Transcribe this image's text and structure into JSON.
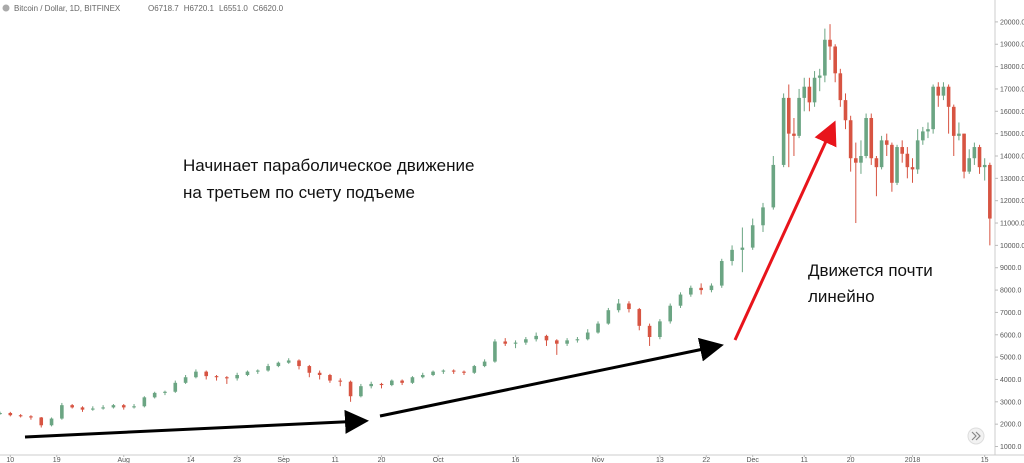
{
  "header": {
    "title": "Bitcoin / Dollar, 1D, BITFINEX",
    "ohlc": [
      "O6718.7",
      "H6720.1",
      "L6551.0",
      "C6620.0"
    ]
  },
  "chart_data": {
    "type": "candlestick",
    "up_color": "#6ba583",
    "down_color": "#d75442",
    "xlim": [
      -2,
      191
    ],
    "ylim": [
      620,
      20980
    ],
    "grid": false,
    "annotations": [
      [
        "Начинает параболическое движение",
        "на третьем по счету подъеме"
      ],
      [
        "Движется почти",
        "линейно"
      ]
    ],
    "xticks": [
      {
        "value": 0,
        "label": "10"
      },
      {
        "value": 9,
        "label": "19"
      },
      {
        "value": 22,
        "label": "Aug"
      },
      {
        "value": 35,
        "label": "14"
      },
      {
        "value": 44,
        "label": "23"
      },
      {
        "value": 53,
        "label": "Sep"
      },
      {
        "value": 63,
        "label": "11"
      },
      {
        "value": 72,
        "label": "20"
      },
      {
        "value": 83,
        "label": "Oct"
      },
      {
        "value": 98,
        "label": "16"
      },
      {
        "value": 114,
        "label": "Nov"
      },
      {
        "value": 126,
        "label": "13"
      },
      {
        "value": 135,
        "label": "22"
      },
      {
        "value": 144,
        "label": "Dec"
      },
      {
        "value": 154,
        "label": "11"
      },
      {
        "value": 163,
        "label": "20"
      },
      {
        "value": 175,
        "label": "2018"
      },
      {
        "value": 189,
        "label": "15"
      }
    ],
    "yticks": [
      {
        "value": 1000,
        "label": "1000.0"
      },
      {
        "value": 2000,
        "label": "2000.0"
      },
      {
        "value": 3000,
        "label": "3000.0"
      },
      {
        "value": 4000,
        "label": "4000.0"
      },
      {
        "value": 5000,
        "label": "5000.0"
      },
      {
        "value": 6000,
        "label": "6000.0"
      },
      {
        "value": 7000,
        "label": "7000.0"
      },
      {
        "value": 8000,
        "label": "8000.0"
      },
      {
        "value": 9000,
        "label": "9000.0"
      },
      {
        "value": 10000,
        "label": "10000.0"
      },
      {
        "value": 11000,
        "label": "11000.0"
      },
      {
        "value": 12000,
        "label": "12000.0"
      },
      {
        "value": 13000,
        "label": "13000.0"
      },
      {
        "value": 14000,
        "label": "14000.0"
      },
      {
        "value": 15000,
        "label": "15000.0"
      },
      {
        "value": 16000,
        "label": "16000.0"
      },
      {
        "value": 17000,
        "label": "17000.0"
      },
      {
        "value": 18000,
        "label": "18000.0"
      },
      {
        "value": 19000,
        "label": "19000.0"
      },
      {
        "value": 20000,
        "label": "20000.0"
      }
    ],
    "candles": [
      {
        "x": -2,
        "o": 2450,
        "h": 2560,
        "l": 2420,
        "c": 2500
      },
      {
        "x": 0,
        "o": 2500,
        "h": 2550,
        "l": 2350,
        "c": 2400
      },
      {
        "x": 2,
        "o": 2400,
        "h": 2450,
        "l": 2300,
        "c": 2350
      },
      {
        "x": 4,
        "o": 2350,
        "h": 2400,
        "l": 2200,
        "c": 2300
      },
      {
        "x": 6,
        "o": 2300,
        "h": 2320,
        "l": 1850,
        "c": 1950
      },
      {
        "x": 8,
        "o": 1950,
        "h": 2300,
        "l": 1900,
        "c": 2250
      },
      {
        "x": 10,
        "o": 2250,
        "h": 2950,
        "l": 2200,
        "c": 2850
      },
      {
        "x": 12,
        "o": 2850,
        "h": 2900,
        "l": 2700,
        "c": 2750
      },
      {
        "x": 14,
        "o": 2750,
        "h": 2800,
        "l": 2550,
        "c": 2650
      },
      {
        "x": 16,
        "o": 2650,
        "h": 2800,
        "l": 2600,
        "c": 2700
      },
      {
        "x": 18,
        "o": 2700,
        "h": 2850,
        "l": 2650,
        "c": 2750
      },
      {
        "x": 20,
        "o": 2750,
        "h": 2900,
        "l": 2700,
        "c": 2850
      },
      {
        "x": 22,
        "o": 2850,
        "h": 2900,
        "l": 2650,
        "c": 2750
      },
      {
        "x": 24,
        "o": 2750,
        "h": 2900,
        "l": 2700,
        "c": 2800
      },
      {
        "x": 26,
        "o": 2800,
        "h": 3250,
        "l": 2750,
        "c": 3200
      },
      {
        "x": 28,
        "o": 3200,
        "h": 3450,
        "l": 3150,
        "c": 3400
      },
      {
        "x": 30,
        "o": 3400,
        "h": 3500,
        "l": 3300,
        "c": 3450
      },
      {
        "x": 32,
        "o": 3450,
        "h": 3950,
        "l": 3400,
        "c": 3850
      },
      {
        "x": 34,
        "o": 3850,
        "h": 4200,
        "l": 3800,
        "c": 4100
      },
      {
        "x": 36,
        "o": 4100,
        "h": 4450,
        "l": 4050,
        "c": 4350
      },
      {
        "x": 38,
        "o": 4350,
        "h": 4400,
        "l": 4000,
        "c": 4150
      },
      {
        "x": 40,
        "o": 4150,
        "h": 4200,
        "l": 3950,
        "c": 4100
      },
      {
        "x": 42,
        "o": 4100,
        "h": 4150,
        "l": 3800,
        "c": 4050
      },
      {
        "x": 44,
        "o": 4050,
        "h": 4300,
        "l": 3950,
        "c": 4200
      },
      {
        "x": 46,
        "o": 4200,
        "h": 4400,
        "l": 4150,
        "c": 4350
      },
      {
        "x": 48,
        "o": 4350,
        "h": 4450,
        "l": 4250,
        "c": 4400
      },
      {
        "x": 50,
        "o": 4400,
        "h": 4700,
        "l": 4350,
        "c": 4600
      },
      {
        "x": 52,
        "o": 4600,
        "h": 4800,
        "l": 4550,
        "c": 4750
      },
      {
        "x": 54,
        "o": 4750,
        "h": 4950,
        "l": 4700,
        "c": 4850
      },
      {
        "x": 56,
        "o": 4850,
        "h": 4900,
        "l": 4450,
        "c": 4600
      },
      {
        "x": 58,
        "o": 4600,
        "h": 4650,
        "l": 4100,
        "c": 4300
      },
      {
        "x": 60,
        "o": 4300,
        "h": 4400,
        "l": 4000,
        "c": 4200
      },
      {
        "x": 62,
        "o": 4200,
        "h": 4250,
        "l": 3850,
        "c": 3950
      },
      {
        "x": 64,
        "o": 3950,
        "h": 4050,
        "l": 3700,
        "c": 3900
      },
      {
        "x": 66,
        "o": 3900,
        "h": 3950,
        "l": 3000,
        "c": 3250
      },
      {
        "x": 68,
        "o": 3250,
        "h": 3800,
        "l": 3200,
        "c": 3700
      },
      {
        "x": 70,
        "o": 3700,
        "h": 3900,
        "l": 3600,
        "c": 3800
      },
      {
        "x": 72,
        "o": 3800,
        "h": 3850,
        "l": 3600,
        "c": 3750
      },
      {
        "x": 74,
        "o": 3750,
        "h": 4000,
        "l": 3700,
        "c": 3950
      },
      {
        "x": 76,
        "o": 3950,
        "h": 4000,
        "l": 3750,
        "c": 3850
      },
      {
        "x": 78,
        "o": 3850,
        "h": 4150,
        "l": 3800,
        "c": 4100
      },
      {
        "x": 80,
        "o": 4100,
        "h": 4300,
        "l": 4050,
        "c": 4200
      },
      {
        "x": 82,
        "o": 4200,
        "h": 4400,
        "l": 4150,
        "c": 4350
      },
      {
        "x": 84,
        "o": 4350,
        "h": 4450,
        "l": 4250,
        "c": 4400
      },
      {
        "x": 86,
        "o": 4400,
        "h": 4450,
        "l": 4250,
        "c": 4350
      },
      {
        "x": 88,
        "o": 4350,
        "h": 4400,
        "l": 4200,
        "c": 4300
      },
      {
        "x": 90,
        "o": 4300,
        "h": 4650,
        "l": 4250,
        "c": 4600
      },
      {
        "x": 92,
        "o": 4600,
        "h": 4900,
        "l": 4550,
        "c": 4800
      },
      {
        "x": 94,
        "o": 4800,
        "h": 5800,
        "l": 4750,
        "c": 5700
      },
      {
        "x": 96,
        "o": 5700,
        "h": 5850,
        "l": 5500,
        "c": 5600
      },
      {
        "x": 98,
        "o": 5600,
        "h": 5750,
        "l": 5400,
        "c": 5650
      },
      {
        "x": 100,
        "o": 5650,
        "h": 5900,
        "l": 5550,
        "c": 5800
      },
      {
        "x": 102,
        "o": 5800,
        "h": 6100,
        "l": 5700,
        "c": 5950
      },
      {
        "x": 104,
        "o": 5950,
        "h": 6000,
        "l": 5500,
        "c": 5750
      },
      {
        "x": 106,
        "o": 5750,
        "h": 5800,
        "l": 5100,
        "c": 5600
      },
      {
        "x": 108,
        "o": 5600,
        "h": 5850,
        "l": 5500,
        "c": 5750
      },
      {
        "x": 110,
        "o": 5750,
        "h": 5900,
        "l": 5650,
        "c": 5800
      },
      {
        "x": 112,
        "o": 5800,
        "h": 6250,
        "l": 5750,
        "c": 6100
      },
      {
        "x": 114,
        "o": 6100,
        "h": 6600,
        "l": 6050,
        "c": 6500
      },
      {
        "x": 116,
        "o": 6500,
        "h": 7200,
        "l": 6450,
        "c": 7100
      },
      {
        "x": 118,
        "o": 7100,
        "h": 7600,
        "l": 7000,
        "c": 7400
      },
      {
        "x": 120,
        "o": 7400,
        "h": 7500,
        "l": 7000,
        "c": 7150
      },
      {
        "x": 122,
        "o": 7150,
        "h": 7200,
        "l": 6200,
        "c": 6400
      },
      {
        "x": 124,
        "o": 6400,
        "h": 6500,
        "l": 5500,
        "c": 5900
      },
      {
        "x": 126,
        "o": 5900,
        "h": 6700,
        "l": 5800,
        "c": 6600
      },
      {
        "x": 128,
        "o": 6600,
        "h": 7400,
        "l": 6500,
        "c": 7300
      },
      {
        "x": 130,
        "o": 7300,
        "h": 7900,
        "l": 7200,
        "c": 7800
      },
      {
        "x": 132,
        "o": 7800,
        "h": 8200,
        "l": 7700,
        "c": 8100
      },
      {
        "x": 134,
        "o": 8100,
        "h": 8300,
        "l": 7800,
        "c": 8000
      },
      {
        "x": 136,
        "o": 8000,
        "h": 8300,
        "l": 7900,
        "c": 8200
      },
      {
        "x": 138,
        "o": 8200,
        "h": 9400,
        "l": 8100,
        "c": 9300
      },
      {
        "x": 140,
        "o": 9300,
        "h": 10000,
        "l": 9100,
        "c": 9800
      },
      {
        "x": 142,
        "o": 9800,
        "h": 10800,
        "l": 8800,
        "c": 9900
      },
      {
        "x": 144,
        "o": 9900,
        "h": 11200,
        "l": 9800,
        "c": 10900
      },
      {
        "x": 146,
        "o": 10900,
        "h": 11900,
        "l": 10600,
        "c": 11700
      },
      {
        "x": 148,
        "o": 11700,
        "h": 14000,
        "l": 11600,
        "c": 13600
      },
      {
        "x": 150,
        "o": 13600,
        "h": 16800,
        "l": 13500,
        "c": 16600
      },
      {
        "x": 151,
        "o": 16600,
        "h": 17200,
        "l": 13500,
        "c": 15000
      },
      {
        "x": 152,
        "o": 15000,
        "h": 15700,
        "l": 14000,
        "c": 14900
      },
      {
        "x": 153,
        "o": 14900,
        "h": 17000,
        "l": 14800,
        "c": 16600
      },
      {
        "x": 154,
        "o": 16600,
        "h": 17500,
        "l": 16000,
        "c": 17100
      },
      {
        "x": 155,
        "o": 17100,
        "h": 17500,
        "l": 16000,
        "c": 16400
      },
      {
        "x": 156,
        "o": 16400,
        "h": 17800,
        "l": 16200,
        "c": 17500
      },
      {
        "x": 157,
        "o": 17500,
        "h": 17900,
        "l": 16900,
        "c": 17600
      },
      {
        "x": 158,
        "o": 17600,
        "h": 19700,
        "l": 17300,
        "c": 19200
      },
      {
        "x": 159,
        "o": 19200,
        "h": 19900,
        "l": 18300,
        "c": 18900
      },
      {
        "x": 160,
        "o": 18900,
        "h": 19000,
        "l": 17300,
        "c": 17700
      },
      {
        "x": 161,
        "o": 17700,
        "h": 17900,
        "l": 16200,
        "c": 16500
      },
      {
        "x": 162,
        "o": 16500,
        "h": 16800,
        "l": 15200,
        "c": 15600
      },
      {
        "x": 163,
        "o": 15600,
        "h": 15800,
        "l": 13300,
        "c": 13900
      },
      {
        "x": 164,
        "o": 13900,
        "h": 14600,
        "l": 11000,
        "c": 13700
      },
      {
        "x": 165,
        "o": 13700,
        "h": 14700,
        "l": 13200,
        "c": 14000
      },
      {
        "x": 166,
        "o": 14000,
        "h": 15900,
        "l": 13900,
        "c": 15700
      },
      {
        "x": 167,
        "o": 15700,
        "h": 15900,
        "l": 13600,
        "c": 13900
      },
      {
        "x": 168,
        "o": 13900,
        "h": 14000,
        "l": 12200,
        "c": 13500
      },
      {
        "x": 169,
        "o": 13500,
        "h": 14900,
        "l": 13400,
        "c": 14700
      },
      {
        "x": 170,
        "o": 14700,
        "h": 15000,
        "l": 14000,
        "c": 14500
      },
      {
        "x": 171,
        "o": 14500,
        "h": 14600,
        "l": 12400,
        "c": 12800
      },
      {
        "x": 172,
        "o": 12800,
        "h": 14500,
        "l": 12700,
        "c": 14400
      },
      {
        "x": 173,
        "o": 14400,
        "h": 14700,
        "l": 13700,
        "c": 14100
      },
      {
        "x": 174,
        "o": 14100,
        "h": 14400,
        "l": 13000,
        "c": 13500
      },
      {
        "x": 175,
        "o": 13500,
        "h": 13900,
        "l": 12800,
        "c": 13400
      },
      {
        "x": 176,
        "o": 13400,
        "h": 15200,
        "l": 13200,
        "c": 14700
      },
      {
        "x": 177,
        "o": 14700,
        "h": 15300,
        "l": 14500,
        "c": 15100
      },
      {
        "x": 178,
        "o": 15100,
        "h": 15500,
        "l": 14800,
        "c": 15200
      },
      {
        "x": 179,
        "o": 15200,
        "h": 17200,
        "l": 15000,
        "c": 17100
      },
      {
        "x": 180,
        "o": 17100,
        "h": 17300,
        "l": 16200,
        "c": 16700
      },
      {
        "x": 181,
        "o": 16700,
        "h": 17300,
        "l": 16500,
        "c": 17100
      },
      {
        "x": 182,
        "o": 17100,
        "h": 17200,
        "l": 15000,
        "c": 16200
      },
      {
        "x": 183,
        "o": 16200,
        "h": 16300,
        "l": 14000,
        "c": 14900
      },
      {
        "x": 184,
        "o": 14900,
        "h": 15500,
        "l": 14700,
        "c": 15000
      },
      {
        "x": 185,
        "o": 15000,
        "h": 15000,
        "l": 13000,
        "c": 13300
      },
      {
        "x": 186,
        "o": 13300,
        "h": 14300,
        "l": 13200,
        "c": 13900
      },
      {
        "x": 187,
        "o": 13900,
        "h": 14600,
        "l": 13600,
        "c": 14400
      },
      {
        "x": 188,
        "o": 14400,
        "h": 14500,
        "l": 13200,
        "c": 13500
      },
      {
        "x": 189,
        "o": 13500,
        "h": 13900,
        "l": 12900,
        "c": 13600
      },
      {
        "x": 190,
        "o": 13600,
        "h": 13700,
        "l": 10000,
        "c": 11200
      }
    ]
  }
}
